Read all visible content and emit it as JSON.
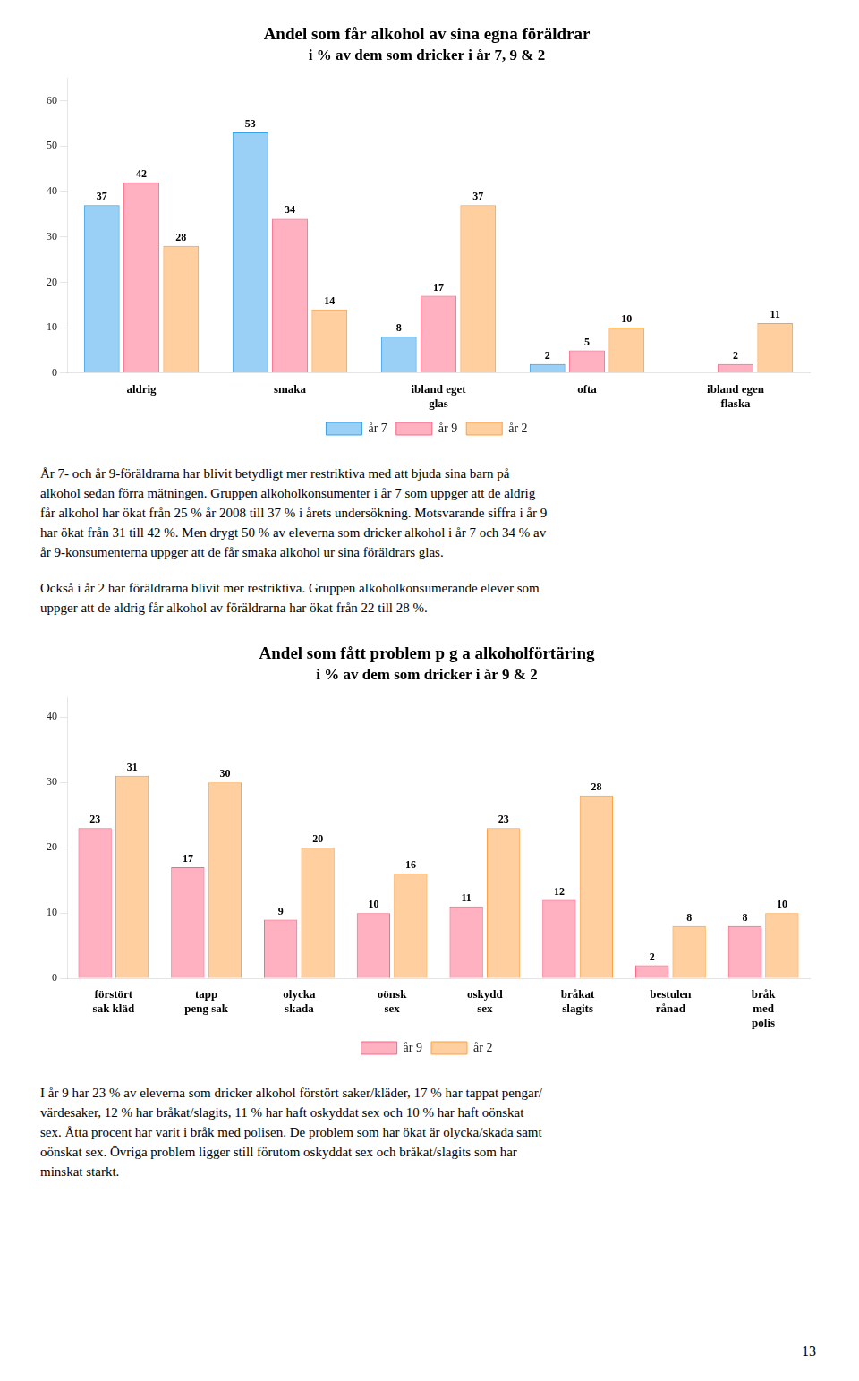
{
  "chart_data": [
    {
      "type": "bar",
      "title": "Andel som får alkohol av sina egna föräldrar",
      "subtitle": "i % av dem som dricker i år 7, 9 & 2",
      "categories": [
        "aldrig",
        "smaka",
        "ibland eget\nglas",
        "ofta",
        "ibland egen\nflaska"
      ],
      "series": [
        {
          "name": "år 7",
          "color": "#36a2eb",
          "values": [
            37,
            53,
            8,
            2,
            0
          ],
          "value_labels": [
            "37",
            "53",
            "8",
            "2",
            null
          ]
        },
        {
          "name": "år 9",
          "color": "#ff6384",
          "values": [
            42,
            34,
            17,
            5,
            2
          ]
        },
        {
          "name": "år 2",
          "color": "#ff9f40",
          "values": [
            28,
            14,
            37,
            10,
            11
          ]
        }
      ],
      "ylim": [
        0,
        65
      ],
      "yticks": [
        0,
        10,
        20,
        30,
        40,
        50,
        60
      ],
      "grid": false,
      "legend": "bottom",
      "data_labels": true
    },
    {
      "type": "bar",
      "title": "Andel som fått problem p g a alkoholförtäring",
      "subtitle": "i % av dem som dricker i år 9 & 2",
      "categories": [
        "förstört\nsak kläd",
        "tapp\npeng sak",
        "olycka\nskada",
        "oönsk\nsex",
        "oskydd\nsex",
        "bråkat\nslagits",
        "bestulen\nrånad",
        "bråk\nmed\npolis"
      ],
      "series": [
        {
          "name": "år 9",
          "color": "#ff6384",
          "values": [
            23,
            17,
            9,
            10,
            11,
            12,
            2,
            8
          ]
        },
        {
          "name": "år 2",
          "color": "#ff9f40",
          "values": [
            31,
            30,
            20,
            16,
            23,
            28,
            8,
            10
          ]
        }
      ],
      "ylim": [
        0,
        43
      ],
      "yticks": [
        0,
        10,
        20,
        30,
        40
      ],
      "grid": false,
      "legend": "bottom",
      "data_labels": true
    }
  ],
  "paragraphs": [
    [
      [
        "År 7- och år 9-föräldrarna har blivit betydligt mer restriktiva med att bjuda sina barn på",
        "alkohol sedan förra mätningen. Gruppen alkoholkonsumenter i år 7 som uppger att de aldrig",
        "får alkohol har ökat från 25 % år 2008 till 37 % i årets undersökning. Motsvarande siffra i år 9",
        "har ökat från 31 till 42 %. Men drygt 50 % av eleverna som dricker alkohol i år 7 och 34 % av",
        "år 9-konsumenterna uppger att de får smaka alkohol ur sina föräldrars glas."
      ],
      [
        "Också i år 2 har föräldrarna blivit mer restriktiva. Gruppen alkoholkonsumerande elever som",
        "uppger att de aldrig får alkohol av föräldrarna har ökat från 22 till 28 %."
      ]
    ],
    [
      [
        "I år 9 har 23 % av eleverna som dricker alkohol förstört saker/kläder, 17 % har tappat pengar/",
        "värdesaker, 12 % har bråkat/slagits, 11 % har haft oskyddat sex och 10 % har haft oönskat",
        "sex. Åtta procent har varit i bråk med polisen. De problem som har ökat är olycka/skada samt",
        "oönskat sex. Övriga problem ligger still förutom oskyddat sex och bråkat/slagits som har",
        "minskat starkt."
      ]
    ]
  ],
  "page_number": "13"
}
